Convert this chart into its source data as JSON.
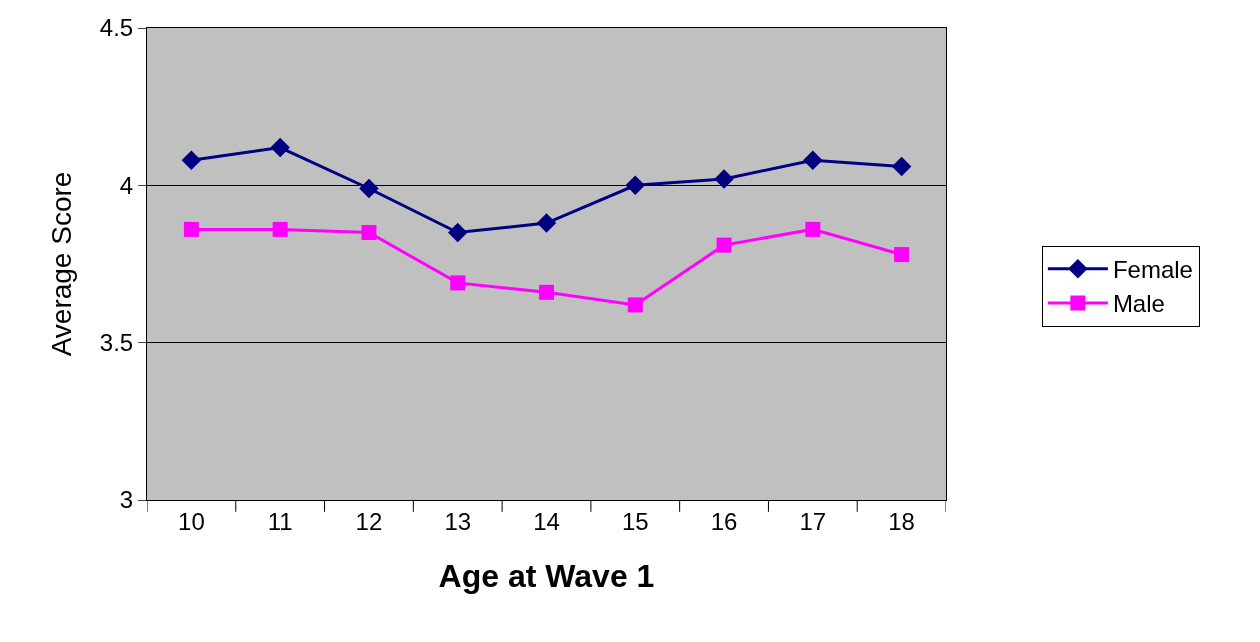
{
  "chart_data": {
    "type": "line",
    "xlabel": "Age at Wave 1",
    "ylabel": "Average Score",
    "categories": [
      "10",
      "11",
      "12",
      "13",
      "14",
      "15",
      "16",
      "17",
      "18"
    ],
    "series": [
      {
        "name": "Female",
        "color": "#000080",
        "marker": "diamond",
        "values": [
          4.08,
          4.12,
          3.99,
          3.85,
          3.88,
          4.0,
          4.02,
          4.08,
          4.06
        ]
      },
      {
        "name": "Male",
        "color": "#ff00ff",
        "marker": "square",
        "values": [
          3.86,
          3.86,
          3.85,
          3.69,
          3.66,
          3.62,
          3.81,
          3.86,
          3.78
        ]
      }
    ],
    "ylim": [
      3,
      4.5
    ],
    "yticks": [
      3,
      3.5,
      4,
      4.5
    ],
    "grid": "y",
    "legend": "right",
    "line_style": "solid"
  }
}
